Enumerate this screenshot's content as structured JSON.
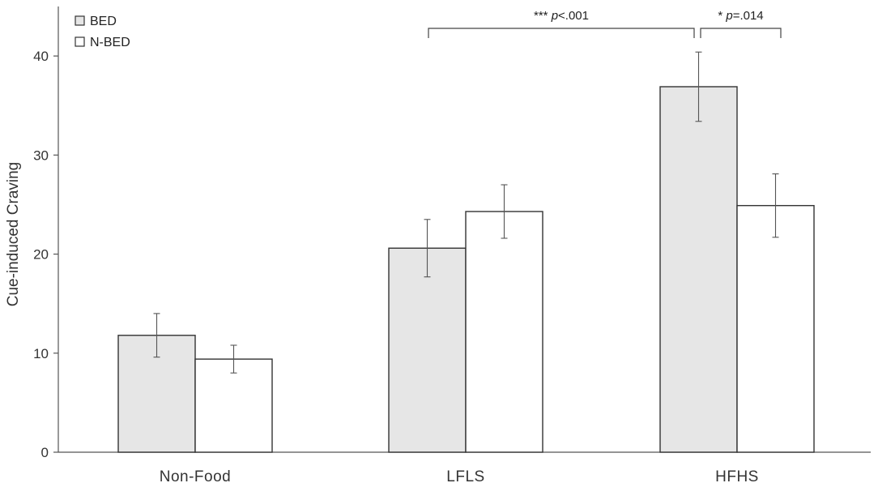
{
  "chart_data": {
    "type": "bar",
    "title": "",
    "xlabel": "",
    "ylabel": "Cue-induced Craving",
    "ylim": [
      0,
      45
    ],
    "yticks": [
      0,
      10,
      20,
      30,
      40
    ],
    "categories": [
      "Non-Food",
      "LFLS",
      "HFHS"
    ],
    "series": [
      {
        "name": "BED",
        "values": [
          11.8,
          20.6,
          36.9
        ],
        "errors": [
          2.2,
          2.9,
          3.5
        ],
        "color": "#e6e6e6"
      },
      {
        "name": "N-BED",
        "values": [
          9.4,
          24.3,
          24.9
        ],
        "errors": [
          1.4,
          2.7,
          3.2
        ],
        "color": "#ffffff"
      }
    ],
    "legend_position": "top-left",
    "annotations": [
      {
        "stars": "***",
        "p": "p",
        "rest": "<.001",
        "from": {
          "category": "LFLS",
          "series": "BED"
        },
        "to": {
          "category": "HFHS",
          "series": "BED"
        }
      },
      {
        "stars": "*",
        "p": "p",
        "rest": "=.014",
        "from": {
          "category": "HFHS",
          "series": "BED"
        },
        "to": {
          "category": "HFHS",
          "series": "N-BED"
        }
      }
    ],
    "grid": false
  }
}
